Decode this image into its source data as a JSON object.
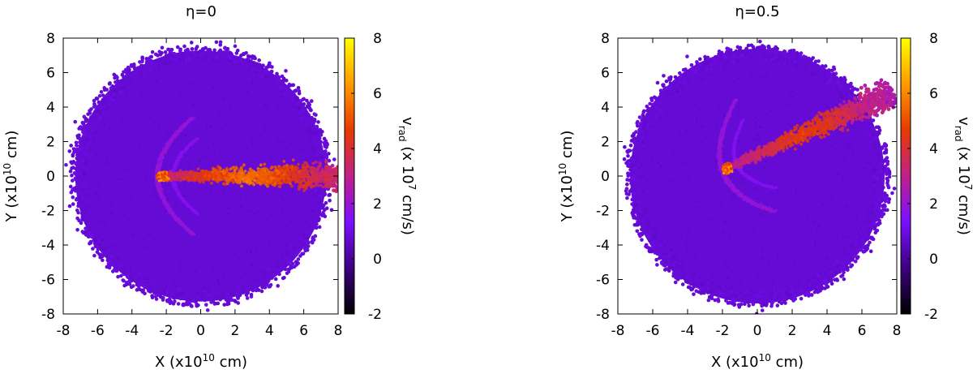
{
  "chart_data": [
    {
      "type": "heatmap",
      "title": "η=0",
      "xlabel": {
        "pre": "X (x10",
        "sup": "10",
        "post": " cm)"
      },
      "ylabel": {
        "pre": "Y (x10",
        "sup": "10",
        "post": " cm)"
      },
      "xlim": [
        -8,
        8
      ],
      "ylim": [
        -8,
        8
      ],
      "xticks": [
        "-8",
        "-6",
        "-4",
        "-2",
        "0",
        "2",
        "4",
        "6",
        "8"
      ],
      "yticks": [
        "-8",
        "-6",
        "-4",
        "-2",
        "0",
        "2",
        "4",
        "6",
        "8"
      ],
      "grid": false,
      "colorbar": {
        "label": {
          "base": "v",
          "sub": "rad",
          "mid": " (x 10",
          "sup": "7",
          "post": " cm/s)"
        },
        "range": [
          -2,
          8
        ],
        "ticks": [
          "-2",
          "0",
          "2",
          "4",
          "6",
          "8"
        ],
        "colormap": [
          "#000000",
          "#3c0080",
          "#7a10ff",
          "#c0208a",
          "#e63a00",
          "#ff9a00",
          "#ffff00"
        ]
      },
      "features": {
        "disk_radius": 7.3,
        "disk_velocity": 0.8,
        "bow_shock_apex": [
          -2.5,
          0
        ],
        "tail_direction_deg": 0,
        "tail_peak_velocity": 5.5
      }
    },
    {
      "type": "heatmap",
      "title": "η=0.5",
      "xlabel": {
        "pre": "X (x10",
        "sup": "10",
        "post": " cm)"
      },
      "ylabel": {
        "pre": "Y (x10",
        "sup": "10",
        "post": " cm)"
      },
      "xlim": [
        -8,
        8
      ],
      "ylim": [
        -8,
        8
      ],
      "xticks": [
        "-8",
        "-6",
        "-4",
        "-2",
        "0",
        "2",
        "4",
        "6",
        "8"
      ],
      "yticks": [
        "-8",
        "-6",
        "-4",
        "-2",
        "0",
        "2",
        "4",
        "6",
        "8"
      ],
      "grid": false,
      "colorbar": {
        "label": {
          "base": "v",
          "sub": "rad",
          "mid": " (x 10",
          "sup": "7",
          "post": " cm/s)"
        },
        "range": [
          -2,
          8
        ],
        "ticks": [
          "-2",
          "0",
          "2",
          "4",
          "6",
          "8"
        ],
        "colormap": [
          "#000000",
          "#3c0080",
          "#7a10ff",
          "#c0208a",
          "#e63a00",
          "#ff9a00",
          "#ffff00"
        ]
      },
      "features": {
        "disk_radius": 7.3,
        "disk_velocity": 0.8,
        "bow_shock_apex": [
          -2.0,
          0.3
        ],
        "tail_direction_deg": 25,
        "tail_peak_velocity": 4.5
      }
    }
  ]
}
